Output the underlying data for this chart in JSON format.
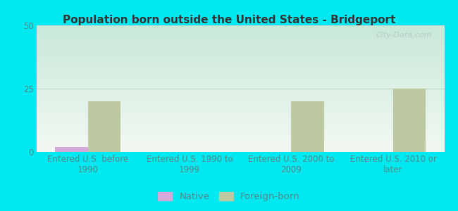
{
  "title": "Population born outside the United States - Bridgeport",
  "categories": [
    "Entered U.S. before\n1990",
    "Entered U.S. 1990 to\n1999",
    "Entered U.S. 2000 to\n2009",
    "Entered U.S. 2010 or\nlater"
  ],
  "native_values": [
    2,
    0,
    0,
    0
  ],
  "foreign_values": [
    20,
    0,
    20,
    25
  ],
  "native_color": "#d4a8d8",
  "foreign_color": "#bdc9a0",
  "ylim": [
    0,
    50
  ],
  "yticks": [
    0,
    25,
    50
  ],
  "background_outer": "#00e8f0",
  "plot_bg_top": "#c8e8d8",
  "plot_bg_bottom": "#f2f8f2",
  "grid_color": "#c8d8c8",
  "title_fontsize": 11,
  "tick_fontsize": 8.5,
  "legend_fontsize": 9.5,
  "bar_width": 0.32,
  "watermark": "City-Data.com",
  "watermark_color": "#b0c8c8",
  "tick_color": "#558888",
  "title_color": "#333333"
}
